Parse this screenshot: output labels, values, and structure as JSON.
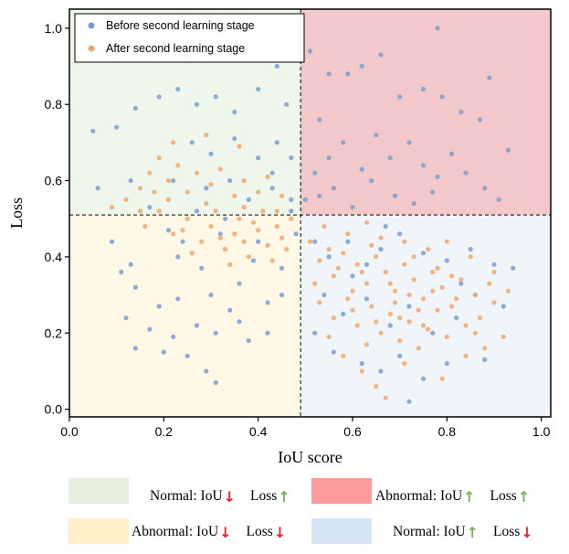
{
  "chart_data": {
    "type": "scatter",
    "xlabel": "IoU score",
    "ylabel": "Loss",
    "xlim": [
      0.0,
      1.02
    ],
    "ylim": [
      -0.02,
      1.05
    ],
    "xticks": [
      "0.0",
      "0.2",
      "0.4",
      "0.6",
      "0.8",
      "1.0"
    ],
    "yticks": [
      "0.0",
      "0.2",
      "0.4",
      "0.6",
      "0.8",
      "1.0"
    ],
    "threshold_x": 0.49,
    "threshold_y": 0.51,
    "legend_position": "top-left",
    "series": [
      {
        "name": "Before second learning stage",
        "color": "#7a9ccf",
        "points": [
          [
            0.05,
            0.73
          ],
          [
            0.1,
            0.74
          ],
          [
            0.14,
            0.79
          ],
          [
            0.19,
            0.82
          ],
          [
            0.23,
            0.84
          ],
          [
            0.27,
            0.8
          ],
          [
            0.31,
            0.82
          ],
          [
            0.35,
            0.78
          ],
          [
            0.4,
            0.84
          ],
          [
            0.44,
            0.9
          ],
          [
            0.46,
            0.8
          ],
          [
            0.26,
            0.7
          ],
          [
            0.3,
            0.67
          ],
          [
            0.35,
            0.71
          ],
          [
            0.4,
            0.66
          ],
          [
            0.44,
            0.7
          ],
          [
            0.47,
            0.66
          ],
          [
            0.22,
            0.6
          ],
          [
            0.34,
            0.6
          ],
          [
            0.43,
            0.58
          ],
          [
            0.47,
            0.55
          ],
          [
            0.06,
            0.58
          ],
          [
            0.13,
            0.6
          ],
          [
            0.09,
            0.44
          ],
          [
            0.13,
            0.38
          ],
          [
            0.11,
            0.36
          ],
          [
            0.23,
            0.4
          ],
          [
            0.28,
            0.37
          ],
          [
            0.36,
            0.33
          ],
          [
            0.42,
            0.28
          ],
          [
            0.45,
            0.3
          ],
          [
            0.14,
            0.32
          ],
          [
            0.19,
            0.27
          ],
          [
            0.23,
            0.29
          ],
          [
            0.3,
            0.3
          ],
          [
            0.34,
            0.26
          ],
          [
            0.12,
            0.24
          ],
          [
            0.17,
            0.21
          ],
          [
            0.22,
            0.19
          ],
          [
            0.27,
            0.22
          ],
          [
            0.31,
            0.2
          ],
          [
            0.36,
            0.23
          ],
          [
            0.14,
            0.16
          ],
          [
            0.2,
            0.15
          ],
          [
            0.25,
            0.14
          ],
          [
            0.29,
            0.1
          ],
          [
            0.31,
            0.07
          ],
          [
            0.38,
            0.18
          ],
          [
            0.42,
            0.2
          ],
          [
            0.24,
            0.44
          ],
          [
            0.32,
            0.46
          ],
          [
            0.39,
            0.39
          ],
          [
            0.45,
            0.37
          ],
          [
            0.47,
            0.52
          ],
          [
            0.48,
            0.46
          ],
          [
            0.5,
            0.55
          ],
          [
            0.51,
            0.94
          ],
          [
            0.53,
            0.76
          ],
          [
            0.55,
            0.88
          ],
          [
            0.59,
            0.88
          ],
          [
            0.62,
            0.9
          ],
          [
            0.66,
            0.93
          ],
          [
            0.7,
            0.82
          ],
          [
            0.75,
            0.84
          ],
          [
            0.79,
            0.82
          ],
          [
            0.83,
            0.78
          ],
          [
            0.87,
            0.76
          ],
          [
            0.89,
            0.87
          ],
          [
            0.93,
            0.68
          ],
          [
            0.78,
            1.0
          ],
          [
            0.52,
            0.62
          ],
          [
            0.55,
            0.66
          ],
          [
            0.58,
            0.7
          ],
          [
            0.62,
            0.63
          ],
          [
            0.65,
            0.72
          ],
          [
            0.68,
            0.66
          ],
          [
            0.72,
            0.7
          ],
          [
            0.75,
            0.64
          ],
          [
            0.78,
            0.61
          ],
          [
            0.81,
            0.67
          ],
          [
            0.84,
            0.62
          ],
          [
            0.88,
            0.58
          ],
          [
            0.91,
            0.55
          ],
          [
            0.53,
            0.56
          ],
          [
            0.56,
            0.58
          ],
          [
            0.6,
            0.53
          ],
          [
            0.64,
            0.6
          ],
          [
            0.69,
            0.56
          ],
          [
            0.73,
            0.54
          ],
          [
            0.77,
            0.57
          ],
          [
            0.52,
            0.44
          ],
          [
            0.55,
            0.4
          ],
          [
            0.59,
            0.44
          ],
          [
            0.63,
            0.38
          ],
          [
            0.66,
            0.42
          ],
          [
            0.7,
            0.46
          ],
          [
            0.75,
            0.41
          ],
          [
            0.8,
            0.39
          ],
          [
            0.85,
            0.42
          ],
          [
            0.9,
            0.38
          ],
          [
            0.94,
            0.37
          ],
          [
            0.54,
            0.3
          ],
          [
            0.58,
            0.25
          ],
          [
            0.63,
            0.29
          ],
          [
            0.68,
            0.22
          ],
          [
            0.72,
            0.27
          ],
          [
            0.77,
            0.2
          ],
          [
            0.82,
            0.24
          ],
          [
            0.86,
            0.3
          ],
          [
            0.92,
            0.27
          ],
          [
            0.56,
            0.15
          ],
          [
            0.62,
            0.12
          ],
          [
            0.66,
            0.1
          ],
          [
            0.7,
            0.14
          ],
          [
            0.75,
            0.08
          ],
          [
            0.8,
            0.12
          ],
          [
            0.88,
            0.13
          ],
          [
            0.72,
            0.02
          ],
          [
            0.52,
            0.2
          ],
          [
            0.6,
            0.35
          ],
          [
            0.83,
            0.33
          ],
          [
            0.67,
            0.48
          ],
          [
            0.43,
            0.62
          ],
          [
            0.38,
            0.55
          ],
          [
            0.29,
            0.58
          ],
          [
            0.17,
            0.53
          ],
          [
            0.21,
            0.47
          ],
          [
            0.27,
            0.52
          ],
          [
            0.33,
            0.5
          ],
          [
            0.4,
            0.44
          ]
        ]
      },
      {
        "name": "After second learning stage",
        "color": "#f0a66c",
        "points": [
          [
            0.09,
            0.53
          ],
          [
            0.12,
            0.55
          ],
          [
            0.15,
            0.58
          ],
          [
            0.17,
            0.62
          ],
          [
            0.19,
            0.66
          ],
          [
            0.21,
            0.6
          ],
          [
            0.23,
            0.64
          ],
          [
            0.25,
            0.57
          ],
          [
            0.27,
            0.62
          ],
          [
            0.3,
            0.59
          ],
          [
            0.32,
            0.63
          ],
          [
            0.35,
            0.56
          ],
          [
            0.37,
            0.6
          ],
          [
            0.4,
            0.57
          ],
          [
            0.42,
            0.61
          ],
          [
            0.45,
            0.56
          ],
          [
            0.22,
            0.7
          ],
          [
            0.29,
            0.72
          ],
          [
            0.36,
            0.69
          ],
          [
            0.16,
            0.48
          ],
          [
            0.19,
            0.52
          ],
          [
            0.22,
            0.46
          ],
          [
            0.25,
            0.5
          ],
          [
            0.28,
            0.44
          ],
          [
            0.3,
            0.48
          ],
          [
            0.33,
            0.42
          ],
          [
            0.35,
            0.46
          ],
          [
            0.38,
            0.4
          ],
          [
            0.4,
            0.47
          ],
          [
            0.42,
            0.43
          ],
          [
            0.44,
            0.48
          ],
          [
            0.46,
            0.42
          ],
          [
            0.31,
            0.52
          ],
          [
            0.36,
            0.5
          ],
          [
            0.41,
            0.52
          ],
          [
            0.26,
            0.41
          ],
          [
            0.34,
            0.38
          ],
          [
            0.45,
            0.45
          ],
          [
            0.24,
            0.47
          ],
          [
            0.37,
            0.53
          ],
          [
            0.15,
            0.52
          ],
          [
            0.43,
            0.39
          ],
          [
            0.47,
            0.5
          ],
          [
            0.29,
            0.54
          ],
          [
            0.39,
            0.49
          ],
          [
            0.21,
            0.55
          ],
          [
            0.18,
            0.57
          ],
          [
            0.32,
            0.45
          ],
          [
            0.37,
            0.44
          ],
          [
            0.44,
            0.52
          ],
          [
            0.51,
            0.44
          ],
          [
            0.53,
            0.39
          ],
          [
            0.56,
            0.35
          ],
          [
            0.58,
            0.41
          ],
          [
            0.61,
            0.38
          ],
          [
            0.63,
            0.33
          ],
          [
            0.65,
            0.4
          ],
          [
            0.67,
            0.36
          ],
          [
            0.69,
            0.31
          ],
          [
            0.71,
            0.38
          ],
          [
            0.73,
            0.34
          ],
          [
            0.75,
            0.29
          ],
          [
            0.77,
            0.36
          ],
          [
            0.79,
            0.32
          ],
          [
            0.81,
            0.27
          ],
          [
            0.83,
            0.34
          ],
          [
            0.86,
            0.3
          ],
          [
            0.89,
            0.33
          ],
          [
            0.53,
            0.28
          ],
          [
            0.56,
            0.24
          ],
          [
            0.59,
            0.29
          ],
          [
            0.61,
            0.22
          ],
          [
            0.64,
            0.27
          ],
          [
            0.66,
            0.2
          ],
          [
            0.68,
            0.25
          ],
          [
            0.7,
            0.18
          ],
          [
            0.72,
            0.23
          ],
          [
            0.74,
            0.16
          ],
          [
            0.76,
            0.21
          ],
          [
            0.78,
            0.26
          ],
          [
            0.8,
            0.19
          ],
          [
            0.84,
            0.22
          ],
          [
            0.88,
            0.16
          ],
          [
            0.92,
            0.19
          ],
          [
            0.58,
            0.14
          ],
          [
            0.62,
            0.1
          ],
          [
            0.65,
            0.06
          ],
          [
            0.67,
            0.03
          ],
          [
            0.79,
            0.08
          ],
          [
            0.54,
            0.48
          ],
          [
            0.59,
            0.46
          ],
          [
            0.63,
            0.49
          ],
          [
            0.71,
            0.44
          ],
          [
            0.76,
            0.42
          ],
          [
            0.85,
            0.4
          ],
          [
            0.52,
            0.33
          ],
          [
            0.6,
            0.31
          ],
          [
            0.69,
            0.28
          ],
          [
            0.74,
            0.26
          ],
          [
            0.82,
            0.29
          ],
          [
            0.87,
            0.24
          ],
          [
            0.9,
            0.28
          ],
          [
            0.55,
            0.19
          ],
          [
            0.63,
            0.17
          ],
          [
            0.71,
            0.12
          ],
          [
            0.84,
            0.14
          ],
          [
            0.57,
            0.37
          ],
          [
            0.66,
            0.45
          ],
          [
            0.73,
            0.4
          ],
          [
            0.78,
            0.37
          ],
          [
            0.68,
            0.33
          ],
          [
            0.62,
            0.36
          ],
          [
            0.7,
            0.24
          ],
          [
            0.77,
            0.31
          ],
          [
            0.81,
            0.35
          ],
          [
            0.6,
            0.26
          ],
          [
            0.65,
            0.23
          ],
          [
            0.72,
            0.3
          ],
          [
            0.75,
            0.22
          ],
          [
            0.86,
            0.2
          ],
          [
            0.9,
            0.36
          ],
          [
            0.93,
            0.31
          ],
          [
            0.55,
            0.42
          ],
          [
            0.64,
            0.43
          ],
          [
            0.8,
            0.44
          ]
        ]
      }
    ]
  },
  "bottom_legend": [
    {
      "color": "#e7f0df",
      "label": "Normal: IoU",
      "iou_arrow": "↓",
      "iou_color": "#e8242a",
      "loss_label": "Loss",
      "loss_arrow": "↑",
      "loss_color": "#77b256"
    },
    {
      "color": "#fc9b9c",
      "label": "Abnormal: IoU",
      "iou_arrow": "↑",
      "iou_color": "#77b256",
      "loss_label": "Loss",
      "loss_arrow": "↑",
      "loss_color": "#77b256"
    },
    {
      "color": "#fff0c9",
      "label": "Abnormal: IoU",
      "iou_arrow": "↓",
      "iou_color": "#e8242a",
      "loss_label": "Loss",
      "loss_arrow": "↓",
      "loss_color": "#e8242a"
    },
    {
      "color": "#d6e5f4",
      "label": "Normal: IoU",
      "iou_arrow": "↑",
      "iou_color": "#77b256",
      "loss_label": "Loss",
      "loss_arrow": "↓",
      "loss_color": "#e8242a"
    }
  ],
  "quadrant_colors": {
    "top_left": "#eff7ec",
    "top_right": "#f2c8ca",
    "bottom_left": "#fff8e6",
    "bottom_right": "#f0f5fa"
  }
}
